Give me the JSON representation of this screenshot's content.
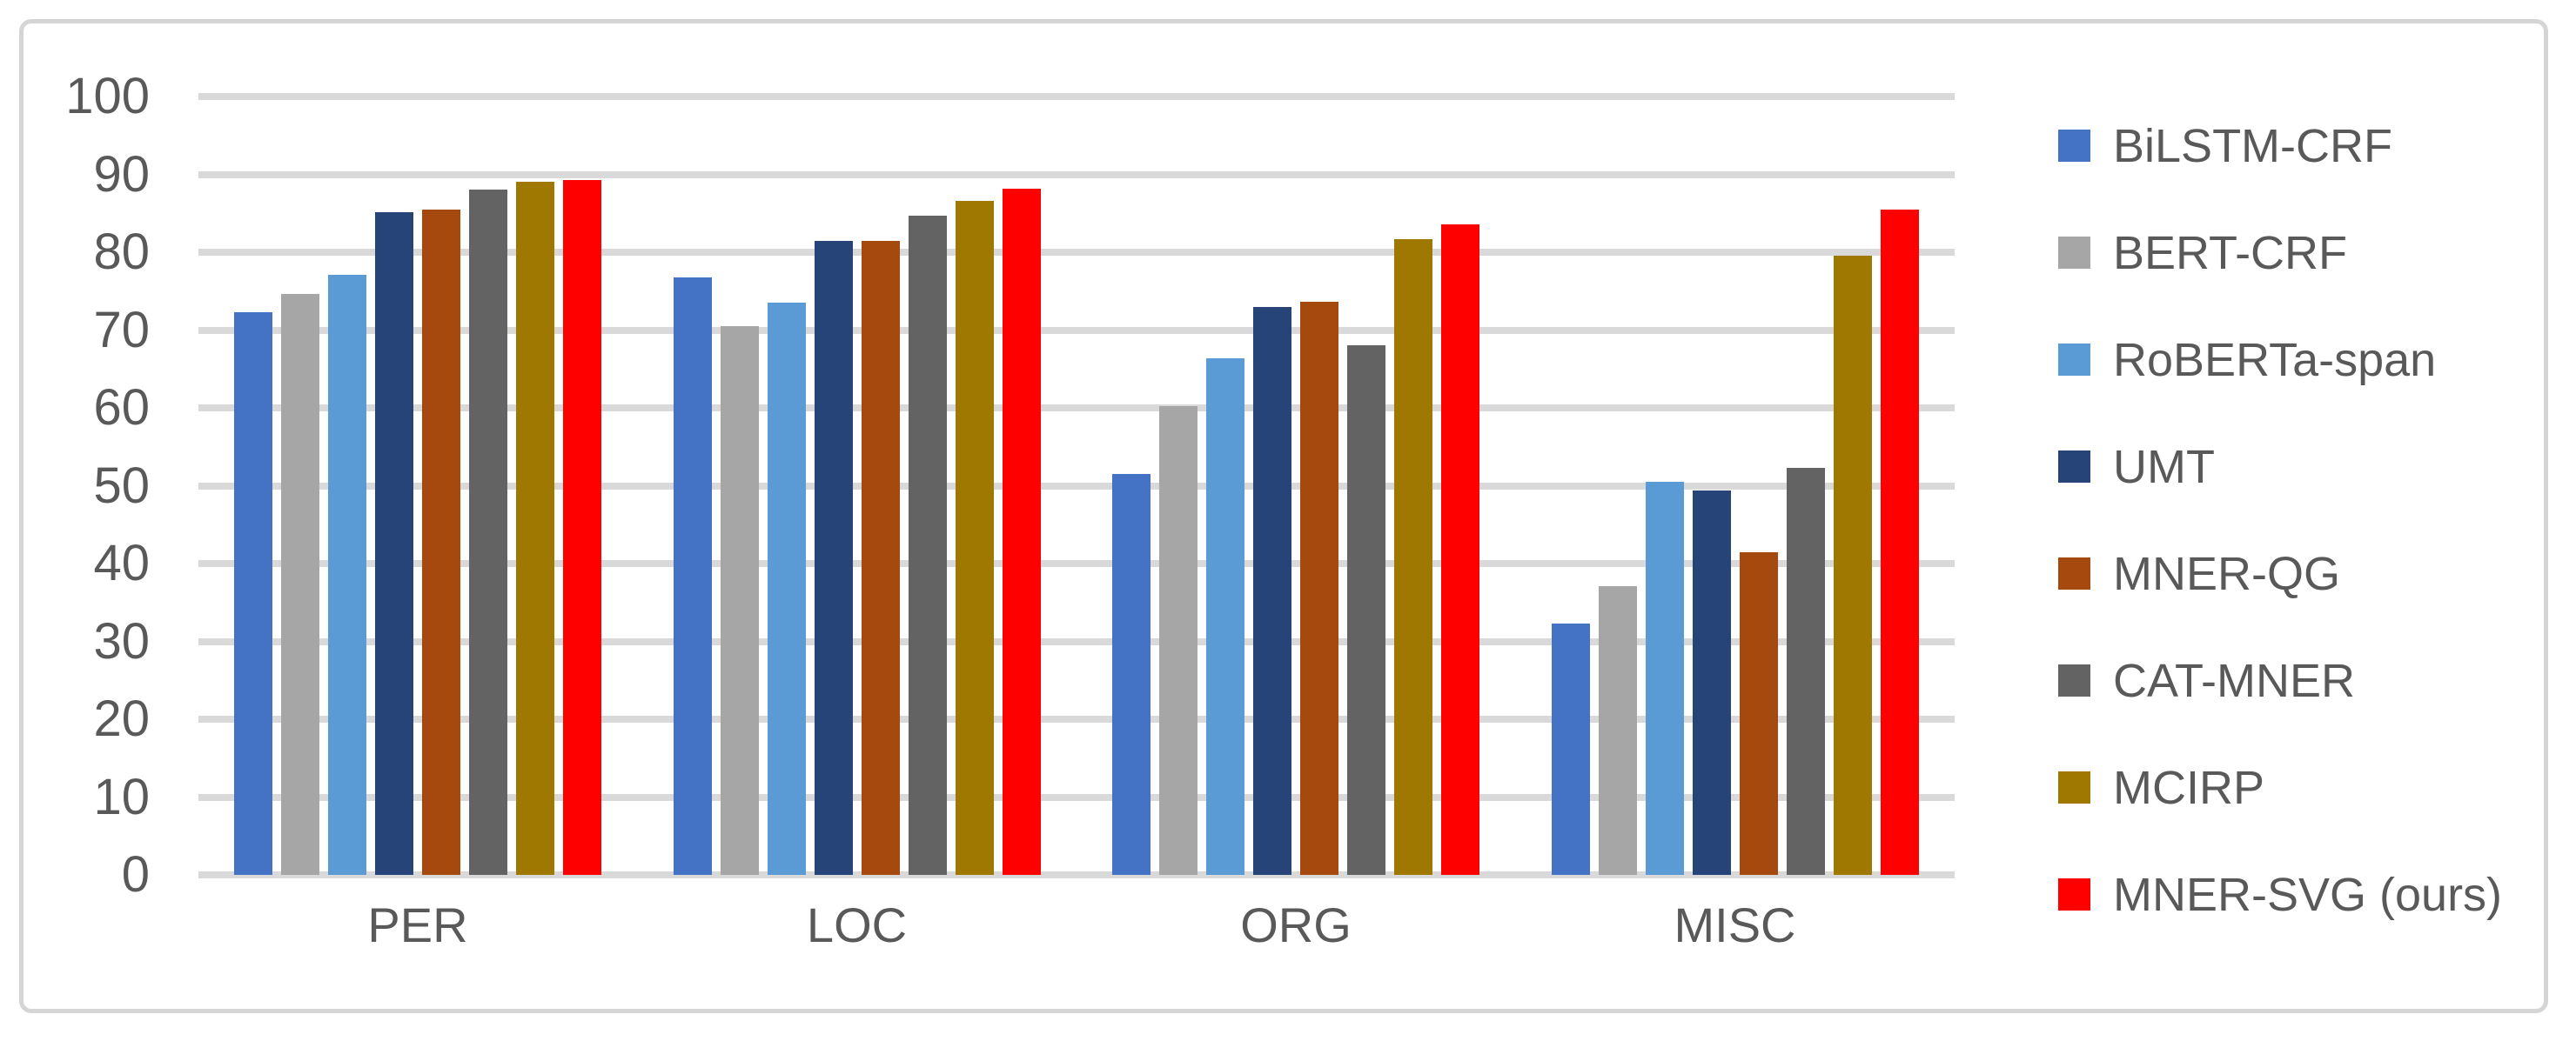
{
  "figure": {
    "background_color": "#FFFFFF",
    "frame_border_color": "#D5D5D5",
    "text_color": "#595959"
  },
  "chart_data": {
    "type": "bar",
    "title": "",
    "xlabel": "",
    "ylabel": "",
    "categories": [
      "PER",
      "LOC",
      "ORG",
      "MISC"
    ],
    "series": [
      {
        "name": "BiLSTM-CRF",
        "color": "#4472C4",
        "values": [
          72.3,
          76.8,
          51.5,
          32.3
        ]
      },
      {
        "name": "BERT-CRF",
        "color": "#A6A6A6",
        "values": [
          74.6,
          70.5,
          60.2,
          37.1
        ]
      },
      {
        "name": "RoBERTa-span",
        "color": "#5B9BD5",
        "values": [
          77.1,
          73.5,
          66.4,
          50.5
        ]
      },
      {
        "name": "UMT",
        "color": "#264478",
        "values": [
          85.1,
          81.5,
          73.0,
          49.4
        ]
      },
      {
        "name": "MNER-QG",
        "color": "#A5490F",
        "values": [
          85.5,
          81.4,
          73.6,
          41.4
        ]
      },
      {
        "name": "CAT-MNER",
        "color": "#636363",
        "values": [
          88.0,
          84.7,
          68.1,
          52.3
        ]
      },
      {
        "name": "MCIRP",
        "color": "#9E7800",
        "values": [
          89.1,
          86.6,
          81.7,
          79.5
        ]
      },
      {
        "name": "MNER-SVG (ours)",
        "color": "#FF0000",
        "values": [
          89.3,
          88.2,
          83.6,
          85.5
        ]
      }
    ],
    "y_axis": {
      "min": 0,
      "max": 100,
      "tick_step": 10,
      "tick_labels": [
        "0",
        "10",
        "20",
        "30",
        "40",
        "50",
        "60",
        "70",
        "80",
        "90",
        "100"
      ]
    },
    "grid": {
      "horizontal": true,
      "vertical": false,
      "color": "#D9D9D9"
    },
    "legend": {
      "position": "right"
    }
  }
}
